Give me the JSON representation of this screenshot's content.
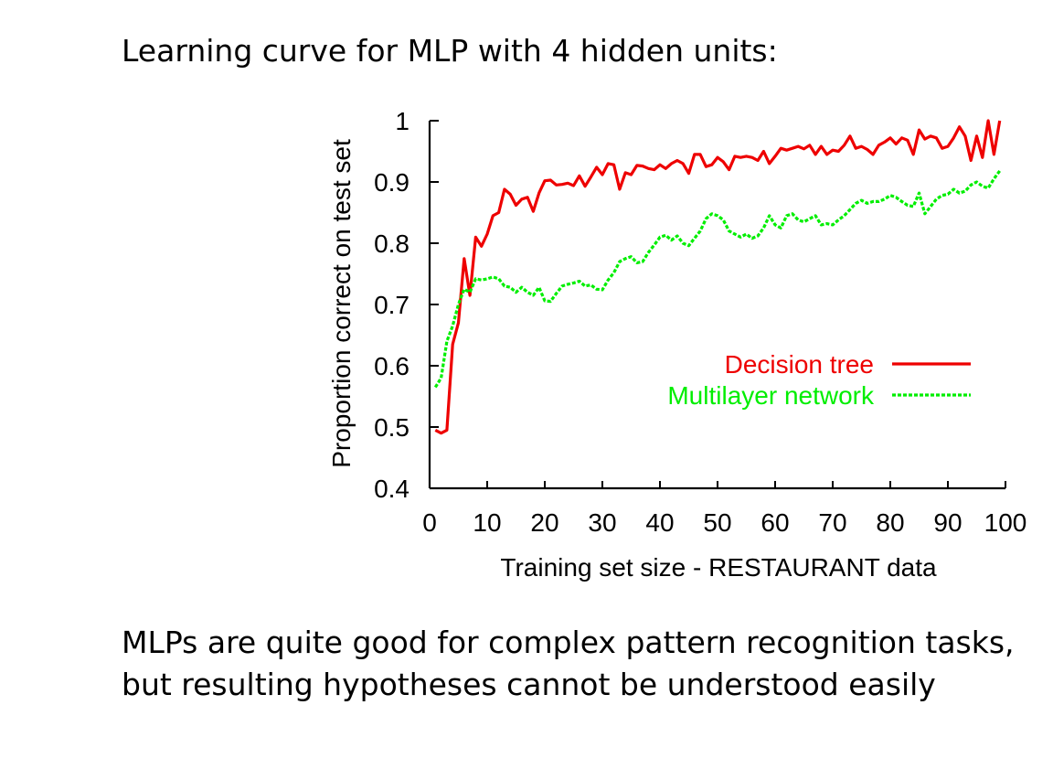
{
  "heading": "Learning curve for MLP with 4 hidden units:",
  "summary_lines": [
    "MLPs are quite good for complex pattern recognition tasks,",
    "but resulting hypotheses cannot be understood easily"
  ],
  "colors": {
    "decision_tree": "#ee0000",
    "multilayer_network": "#00ee00",
    "axis": "#000000"
  },
  "chart_data": {
    "type": "line",
    "title": "",
    "xlabel": "Training set size - RESTAURANT data",
    "ylabel": "Proportion correct on test set",
    "xlim": [
      0,
      100
    ],
    "ylim": [
      0.4,
      1.0
    ],
    "xticks": [
      "0",
      "10",
      "20",
      "30",
      "40",
      "50",
      "60",
      "70",
      "80",
      "90",
      "100"
    ],
    "yticks": [
      "0.4",
      "0.5",
      "0.6",
      "0.7",
      "0.8",
      "0.9",
      "1"
    ],
    "grid": false,
    "legend_position": "center-right",
    "series": [
      {
        "name": "Decision tree",
        "style": "solid",
        "x": [
          1,
          2,
          3,
          4,
          5,
          6,
          7,
          8,
          9,
          10,
          11,
          12,
          13,
          14,
          15,
          16,
          17,
          18,
          19,
          20,
          21,
          22,
          23,
          24,
          25,
          26,
          27,
          28,
          29,
          30,
          31,
          32,
          33,
          34,
          35,
          36,
          37,
          38,
          39,
          40,
          41,
          42,
          43,
          44,
          45,
          46,
          47,
          48,
          49,
          50,
          51,
          52,
          53,
          54,
          55,
          56,
          57,
          58,
          59,
          60,
          61,
          62,
          63,
          64,
          65,
          66,
          67,
          68,
          69,
          70,
          71,
          72,
          73,
          74,
          75,
          76,
          77,
          78,
          79,
          80,
          81,
          82,
          83,
          84,
          85,
          86,
          87,
          88,
          89,
          90,
          91,
          92,
          93,
          94,
          95,
          96,
          97,
          98,
          99
        ],
        "y": [
          0.495,
          0.49,
          0.495,
          0.635,
          0.67,
          0.775,
          0.715,
          0.81,
          0.795,
          0.815,
          0.845,
          0.85,
          0.888,
          0.88,
          0.862,
          0.872,
          0.875,
          0.852,
          0.882,
          0.902,
          0.903,
          0.895,
          0.896,
          0.898,
          0.894,
          0.91,
          0.893,
          0.908,
          0.924,
          0.912,
          0.93,
          0.928,
          0.888,
          0.915,
          0.912,
          0.927,
          0.926,
          0.922,
          0.92,
          0.928,
          0.922,
          0.93,
          0.935,
          0.93,
          0.914,
          0.945,
          0.945,
          0.925,
          0.928,
          0.94,
          0.933,
          0.92,
          0.942,
          0.94,
          0.942,
          0.94,
          0.935,
          0.95,
          0.93,
          0.942,
          0.955,
          0.952,
          0.955,
          0.958,
          0.954,
          0.96,
          0.945,
          0.958,
          0.945,
          0.952,
          0.95,
          0.96,
          0.975,
          0.955,
          0.958,
          0.953,
          0.945,
          0.96,
          0.965,
          0.972,
          0.962,
          0.972,
          0.968,
          0.945,
          0.985,
          0.97,
          0.975,
          0.972,
          0.955,
          0.958,
          0.972,
          0.99,
          0.975,
          0.935,
          0.975,
          0.94,
          1.0,
          0.945,
          1.0
        ]
      },
      {
        "name": "Multilayer network",
        "style": "dashed",
        "x": [
          1,
          2,
          3,
          4,
          5,
          6,
          7,
          8,
          9,
          10,
          11,
          12,
          13,
          14,
          15,
          16,
          17,
          18,
          19,
          20,
          21,
          22,
          23,
          24,
          25,
          26,
          27,
          28,
          29,
          30,
          31,
          32,
          33,
          34,
          35,
          36,
          37,
          38,
          39,
          40,
          41,
          42,
          43,
          44,
          45,
          46,
          47,
          48,
          49,
          50,
          51,
          52,
          53,
          54,
          55,
          56,
          57,
          58,
          59,
          60,
          61,
          62,
          63,
          64,
          65,
          66,
          67,
          68,
          69,
          70,
          71,
          72,
          73,
          74,
          75,
          76,
          77,
          78,
          79,
          80,
          81,
          82,
          83,
          84,
          85,
          86,
          87,
          88,
          89,
          90,
          91,
          92,
          93,
          94,
          95,
          96,
          97,
          98,
          99
        ],
        "y": [
          0.565,
          0.58,
          0.64,
          0.665,
          0.7,
          0.725,
          0.72,
          0.742,
          0.74,
          0.742,
          0.745,
          0.742,
          0.73,
          0.728,
          0.72,
          0.728,
          0.72,
          0.715,
          0.728,
          0.706,
          0.705,
          0.718,
          0.73,
          0.733,
          0.735,
          0.738,
          0.73,
          0.732,
          0.725,
          0.724,
          0.74,
          0.752,
          0.77,
          0.775,
          0.778,
          0.768,
          0.77,
          0.785,
          0.797,
          0.81,
          0.813,
          0.805,
          0.812,
          0.8,
          0.796,
          0.808,
          0.82,
          0.84,
          0.848,
          0.845,
          0.838,
          0.82,
          0.815,
          0.81,
          0.815,
          0.808,
          0.812,
          0.825,
          0.845,
          0.83,
          0.825,
          0.845,
          0.848,
          0.838,
          0.835,
          0.84,
          0.845,
          0.83,
          0.832,
          0.83,
          0.838,
          0.845,
          0.855,
          0.865,
          0.87,
          0.865,
          0.868,
          0.868,
          0.872,
          0.878,
          0.875,
          0.868,
          0.862,
          0.86,
          0.882,
          0.848,
          0.86,
          0.872,
          0.878,
          0.88,
          0.888,
          0.882,
          0.885,
          0.895,
          0.9,
          0.893,
          0.89,
          0.905,
          0.918
        ]
      }
    ]
  }
}
